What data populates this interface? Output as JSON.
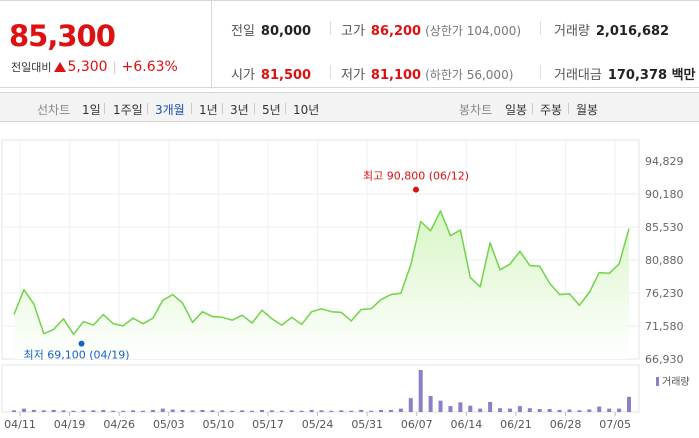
{
  "header": {
    "price": "85,300",
    "change_label": "전일대비",
    "change_value": "5,300",
    "change_pct": "+6.63%",
    "stats": {
      "prev_label": "전일",
      "prev_value": "80,000",
      "high_label": "고가",
      "high_value": "86,200",
      "high_sub": "(상한가 104,000)",
      "volume_label": "거래량",
      "volume_value": "2,016,682",
      "open_label": "시가",
      "open_value": "81,500",
      "low_label": "저가",
      "low_value": "81,100",
      "low_sub": "(하한가 56,000)",
      "amount_label": "거래대금",
      "amount_value": "170,378 백만"
    }
  },
  "toolbar": {
    "line_label": "선차트",
    "line_periods": [
      "1일",
      "1주일",
      "3개월",
      "1년",
      "3년",
      "5년",
      "10년"
    ],
    "active_period": "3개월",
    "candle_label": "봉차트",
    "candle_periods": [
      "일봉",
      "주봉",
      "월봉"
    ]
  },
  "chart_data": {
    "type": "area",
    "x_tick_labels": [
      "04/11",
      "04/19",
      "04/26",
      "05/03",
      "05/10",
      "05/17",
      "05/24",
      "05/31",
      "06/07",
      "06/14",
      "06/21",
      "06/28",
      "07/05"
    ],
    "y_tick_labels": [
      "94,829",
      "90,180",
      "85,530",
      "80,880",
      "76,230",
      "71,580",
      "66,930"
    ],
    "ylim": [
      66930,
      94829
    ],
    "price": [
      73200,
      76700,
      74700,
      70500,
      71100,
      72600,
      70400,
      72200,
      71700,
      73200,
      71900,
      71600,
      72700,
      71900,
      72700,
      75200,
      76000,
      74800,
      72100,
      73600,
      72900,
      72800,
      72400,
      73100,
      72000,
      73800,
      72600,
      71700,
      72800,
      71800,
      73600,
      74000,
      73600,
      73500,
      72300,
      73900,
      74000,
      75300,
      76000,
      76200,
      80200,
      86300,
      85000,
      87800,
      84300,
      85100,
      78400,
      77100,
      83300,
      79500,
      80300,
      82100,
      80100,
      80000,
      77600,
      76000,
      76100,
      74500,
      76300,
      79100,
      79000,
      80300,
      85300
    ],
    "volume": [
      0.04,
      0.08,
      0.05,
      0.04,
      0.05,
      0.04,
      0.03,
      0.04,
      0.04,
      0.05,
      0.03,
      0.03,
      0.04,
      0.03,
      0.05,
      0.08,
      0.06,
      0.05,
      0.04,
      0.05,
      0.04,
      0.04,
      0.03,
      0.04,
      0.03,
      0.05,
      0.04,
      0.03,
      0.04,
      0.03,
      0.05,
      0.04,
      0.03,
      0.04,
      0.03,
      0.05,
      0.03,
      0.05,
      0.05,
      0.08,
      0.33,
      1.0,
      0.38,
      0.27,
      0.14,
      0.23,
      0.15,
      0.08,
      0.24,
      0.09,
      0.08,
      0.14,
      0.09,
      0.07,
      0.07,
      0.05,
      0.06,
      0.04,
      0.06,
      0.13,
      0.08,
      0.08,
      0.36
    ],
    "max_label": "최고 90,800 (06/12)",
    "min_label": "최저 69,100 (04/19)",
    "volume_legend": "거래량"
  },
  "colors": {
    "up": "#dd1111",
    "line": "#6fd447",
    "fill_top": "#d6f5c2",
    "volume": "#8b7fc6",
    "max_dot": "#dd1111",
    "min_dot": "#1565c0"
  }
}
